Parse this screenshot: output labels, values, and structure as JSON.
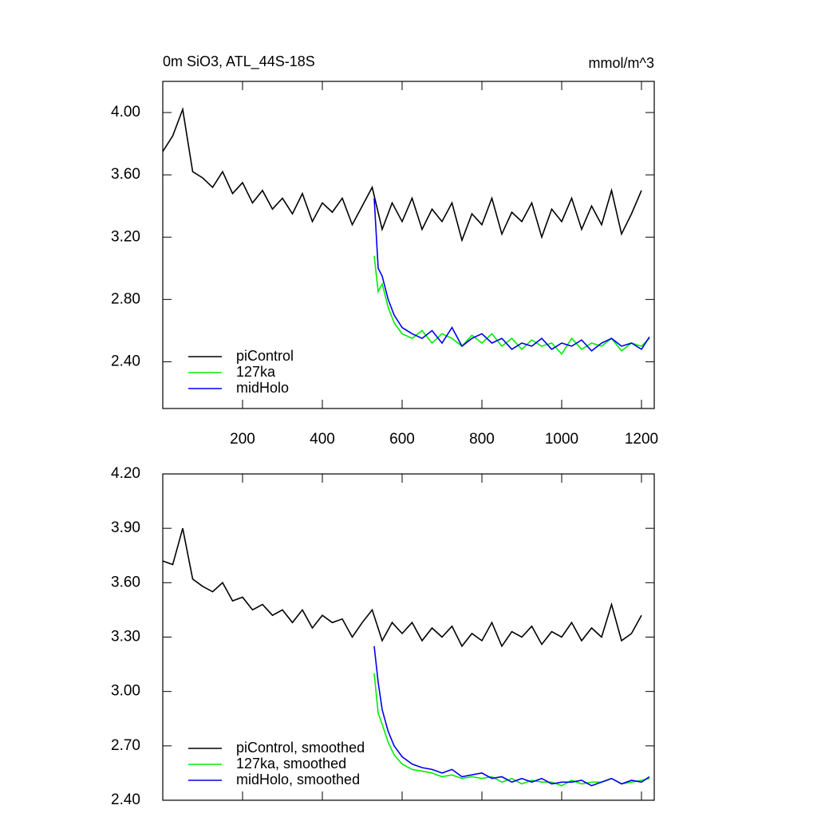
{
  "chart_data": [
    {
      "type": "line",
      "title": "0m SiO3, ATL_44S-18S",
      "units": "mmol/m^3",
      "xlim": [
        0,
        1232
      ],
      "xticks": [
        200,
        400,
        600,
        800,
        1000,
        1200
      ],
      "xtick_labels": true,
      "ylim": [
        2.1,
        4.2
      ],
      "yticks": [
        {
          "value": 2.4,
          "label": "2.40"
        },
        {
          "value": 2.8,
          "label": "2.80"
        },
        {
          "value": 3.2,
          "label": "3.20"
        },
        {
          "value": 3.6,
          "label": "3.60"
        },
        {
          "value": 4.0,
          "label": "4.00"
        }
      ],
      "legend": "lower left",
      "series": [
        {
          "name": "piControl",
          "color": "#000000",
          "x": [
            0,
            25,
            50,
            75,
            100,
            125,
            150,
            175,
            200,
            225,
            250,
            275,
            300,
            325,
            350,
            375,
            400,
            425,
            450,
            475,
            500,
            525,
            550,
            575,
            600,
            625,
            650,
            675,
            700,
            725,
            750,
            775,
            800,
            825,
            850,
            875,
            900,
            925,
            950,
            975,
            1000,
            1025,
            1050,
            1075,
            1100,
            1125,
            1150,
            1175,
            1200
          ],
          "values": [
            3.75,
            3.85,
            4.02,
            3.62,
            3.58,
            3.52,
            3.62,
            3.48,
            3.55,
            3.42,
            3.5,
            3.38,
            3.45,
            3.35,
            3.48,
            3.3,
            3.42,
            3.36,
            3.45,
            3.28,
            3.4,
            3.52,
            3.25,
            3.42,
            3.3,
            3.45,
            3.25,
            3.38,
            3.3,
            3.42,
            3.18,
            3.35,
            3.28,
            3.45,
            3.22,
            3.36,
            3.3,
            3.42,
            3.2,
            3.38,
            3.3,
            3.45,
            3.25,
            3.4,
            3.28,
            3.5,
            3.22,
            3.35,
            3.5
          ]
        },
        {
          "name": "127ka",
          "color": "#00ee00",
          "x": [
            530,
            540,
            550,
            565,
            580,
            600,
            625,
            650,
            675,
            700,
            725,
            750,
            775,
            800,
            825,
            850,
            875,
            900,
            925,
            950,
            975,
            1000,
            1025,
            1050,
            1075,
            1100,
            1125,
            1150,
            1175,
            1200,
            1220
          ],
          "values": [
            3.08,
            2.85,
            2.9,
            2.75,
            2.65,
            2.58,
            2.55,
            2.6,
            2.52,
            2.58,
            2.55,
            2.5,
            2.57,
            2.52,
            2.58,
            2.5,
            2.55,
            2.48,
            2.54,
            2.5,
            2.52,
            2.45,
            2.55,
            2.48,
            2.52,
            2.5,
            2.55,
            2.47,
            2.52,
            2.5,
            2.55
          ]
        },
        {
          "name": "midHolo",
          "color": "#0000ee",
          "x": [
            530,
            540,
            550,
            565,
            580,
            600,
            625,
            650,
            675,
            700,
            725,
            750,
            775,
            800,
            825,
            850,
            875,
            900,
            925,
            950,
            975,
            1000,
            1025,
            1050,
            1075,
            1100,
            1125,
            1150,
            1175,
            1200,
            1220
          ],
          "values": [
            3.45,
            3.0,
            2.95,
            2.8,
            2.7,
            2.62,
            2.58,
            2.55,
            2.6,
            2.52,
            2.62,
            2.5,
            2.55,
            2.58,
            2.52,
            2.55,
            2.48,
            2.52,
            2.5,
            2.55,
            2.48,
            2.52,
            2.5,
            2.54,
            2.47,
            2.52,
            2.55,
            2.5,
            2.52,
            2.48,
            2.56
          ]
        }
      ]
    },
    {
      "type": "line",
      "xlim": [
        0,
        1232
      ],
      "xticks": [
        200,
        400,
        600,
        800,
        1000,
        1200
      ],
      "xtick_labels": false,
      "ylim": [
        2.4,
        4.2
      ],
      "yticks": [
        {
          "value": 2.4,
          "label": "2.40"
        },
        {
          "value": 2.7,
          "label": "2.70"
        },
        {
          "value": 3.0,
          "label": "3.00"
        },
        {
          "value": 3.3,
          "label": "3.30"
        },
        {
          "value": 3.6,
          "label": "3.60"
        },
        {
          "value": 3.9,
          "label": "3.90"
        },
        {
          "value": 4.2,
          "label": "4.20"
        }
      ],
      "legend": "lower left",
      "series": [
        {
          "name": "piControl, smoothed",
          "color": "#000000",
          "x": [
            0,
            25,
            50,
            75,
            100,
            125,
            150,
            175,
            200,
            225,
            250,
            275,
            300,
            325,
            350,
            375,
            400,
            425,
            450,
            475,
            500,
            525,
            550,
            575,
            600,
            625,
            650,
            675,
            700,
            725,
            750,
            775,
            800,
            825,
            850,
            875,
            900,
            925,
            950,
            975,
            1000,
            1025,
            1050,
            1075,
            1100,
            1125,
            1150,
            1175,
            1200
          ],
          "values": [
            3.72,
            3.7,
            3.9,
            3.62,
            3.58,
            3.55,
            3.6,
            3.5,
            3.52,
            3.45,
            3.48,
            3.42,
            3.45,
            3.38,
            3.45,
            3.35,
            3.42,
            3.38,
            3.4,
            3.3,
            3.38,
            3.45,
            3.28,
            3.38,
            3.32,
            3.38,
            3.28,
            3.35,
            3.3,
            3.36,
            3.25,
            3.32,
            3.28,
            3.38,
            3.25,
            3.33,
            3.3,
            3.36,
            3.26,
            3.33,
            3.3,
            3.38,
            3.28,
            3.35,
            3.3,
            3.48,
            3.28,
            3.32,
            3.42
          ]
        },
        {
          "name": "127ka, smoothed",
          "color": "#00ee00",
          "x": [
            530,
            540,
            550,
            565,
            580,
            600,
            625,
            650,
            675,
            700,
            725,
            750,
            775,
            800,
            825,
            850,
            875,
            900,
            925,
            950,
            975,
            1000,
            1025,
            1050,
            1075,
            1100,
            1125,
            1150,
            1175,
            1200,
            1220
          ],
          "values": [
            3.1,
            2.88,
            2.82,
            2.72,
            2.65,
            2.6,
            2.57,
            2.56,
            2.55,
            2.53,
            2.54,
            2.52,
            2.53,
            2.52,
            2.53,
            2.5,
            2.52,
            2.49,
            2.51,
            2.5,
            2.5,
            2.48,
            2.51,
            2.49,
            2.5,
            2.5,
            2.52,
            2.49,
            2.5,
            2.51,
            2.52
          ]
        },
        {
          "name": "midHolo, smoothed",
          "color": "#0000ee",
          "x": [
            530,
            540,
            550,
            565,
            580,
            600,
            625,
            650,
            675,
            700,
            725,
            750,
            775,
            800,
            825,
            850,
            875,
            900,
            925,
            950,
            975,
            1000,
            1025,
            1050,
            1075,
            1100,
            1125,
            1150,
            1175,
            1200,
            1220
          ],
          "values": [
            3.25,
            3.05,
            2.9,
            2.78,
            2.7,
            2.64,
            2.6,
            2.58,
            2.57,
            2.55,
            2.57,
            2.53,
            2.54,
            2.55,
            2.52,
            2.53,
            2.5,
            2.52,
            2.5,
            2.52,
            2.49,
            2.5,
            2.5,
            2.51,
            2.48,
            2.5,
            2.52,
            2.49,
            2.51,
            2.5,
            2.53
          ]
        }
      ]
    }
  ]
}
